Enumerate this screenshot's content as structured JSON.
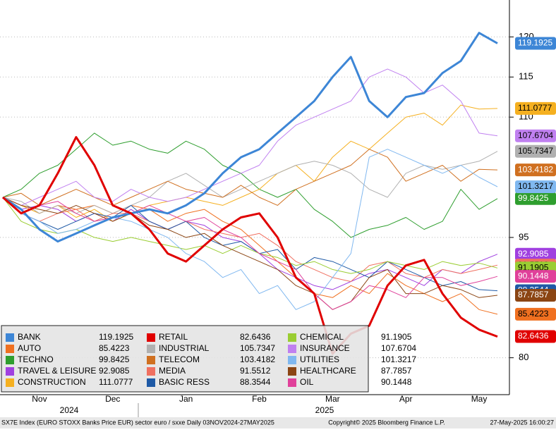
{
  "chart_data": {
    "type": "line",
    "footer_left": "SX7E Index (EURO STOXX Banks Price EUR) sector euro / sxxe  Daily 03NOV2024-27MAY2025",
    "footer_center": "Copyright© 2025 Bloomberg Finance L.P.",
    "footer_right": "27-May-2025 16:00:27",
    "years": [
      "2024",
      "2025"
    ],
    "categories": [
      null,
      null,
      "Nov",
      null,
      null,
      null,
      "Dec",
      null,
      null,
      null,
      "Jan",
      null,
      null,
      null,
      "Feb",
      null,
      null,
      null,
      "Mar",
      null,
      null,
      null,
      "Apr",
      null,
      null,
      null,
      "May",
      null
    ],
    "ylim": [
      75.4,
      124.6
    ],
    "yticks": [
      80,
      95,
      110,
      115,
      120
    ],
    "grid": true,
    "series": [
      {
        "name": "BANK",
        "color": "#3d86d6",
        "line_width": 3,
        "values": [
          100,
          98.5,
          96,
          94.5,
          95.5,
          96.5,
          97.5,
          98,
          98.5,
          98,
          99,
          100.5,
          103,
          105,
          106,
          108,
          110,
          112,
          115,
          117.5,
          112,
          110,
          112.5,
          113,
          115.5,
          117,
          120.5,
          119.1925
        ]
      },
      {
        "name": "AUTO",
        "color": "#f07020",
        "line_width": 1,
        "values": [
          100,
          99,
          98,
          99,
          98.5,
          99,
          98,
          99,
          98.5,
          97,
          98,
          98.5,
          97,
          96,
          94,
          92,
          90,
          88,
          87.5,
          89,
          88,
          90.5,
          89,
          88,
          87,
          88,
          86,
          85.4223
        ]
      },
      {
        "name": "TECHNO",
        "color": "#2e9e2e",
        "line_width": 1,
        "values": [
          100,
          101,
          103,
          104,
          106,
          108,
          106.5,
          107,
          106,
          105.5,
          107,
          106,
          104,
          103,
          101,
          100,
          101,
          98.5,
          97,
          95,
          96,
          96.5,
          97.5,
          96,
          97,
          101,
          98.5,
          99.8425
        ]
      },
      {
        "name": "TRAVEL & LEISURE",
        "color": "#a040e0",
        "line_width": 1,
        "values": [
          100,
          98.5,
          99,
          98.5,
          97,
          98,
          97,
          98.5,
          97,
          96,
          97,
          96.5,
          95,
          94.5,
          93,
          91,
          90,
          89,
          88.5,
          89.5,
          90.5,
          91,
          90,
          89,
          91,
          90.5,
          92,
          92.9085
        ]
      },
      {
        "name": "CONSTRUCTION",
        "color": "#f5b020",
        "line_width": 1,
        "values": [
          100,
          99,
          98,
          99,
          97.5,
          98.5,
          97,
          98,
          99,
          99.5,
          100,
          99.5,
          99,
          100,
          101,
          103,
          104,
          102,
          105,
          107,
          106,
          108,
          110,
          110.5,
          109,
          111.5,
          111,
          111.0777
        ]
      },
      {
        "name": "RETAIL",
        "color": "#e00000",
        "line_width": 3,
        "values": [
          100,
          98,
          99,
          103,
          107.5,
          104,
          99,
          98,
          96,
          93,
          92,
          94,
          96,
          97.5,
          98,
          95,
          90,
          88,
          80.5,
          83,
          84,
          89,
          91.5,
          92.2,
          88,
          85,
          83.5,
          82.6436
        ]
      },
      {
        "name": "INDUSTRIAL",
        "color": "#b0b0b0",
        "line_width": 1,
        "values": [
          100,
          99.5,
          98,
          99,
          98,
          99,
          98,
          99,
          100,
          102,
          103,
          101.5,
          100,
          101,
          102,
          103,
          104,
          104.5,
          104,
          103,
          101,
          100,
          103,
          104,
          103.5,
          104,
          104.5,
          105.7347
        ]
      },
      {
        "name": "TELECOM",
        "color": "#d07020",
        "line_width": 1,
        "values": [
          100,
          100.5,
          99,
          100,
          101,
          100,
          99,
          100,
          101,
          102,
          101,
          100.5,
          100,
          101.5,
          100,
          99,
          101,
          102,
          103,
          104,
          106,
          105,
          102,
          103,
          104,
          102,
          103.5,
          103.4182
        ]
      },
      {
        "name": "MEDIA",
        "color": "#f07060",
        "line_width": 1,
        "values": [
          100,
          98,
          97,
          98,
          98.5,
          97,
          98,
          98,
          97,
          96,
          97,
          96,
          95.5,
          95,
          95.5,
          94,
          92,
          91,
          90,
          89.5,
          91.5,
          92,
          90.5,
          90,
          91,
          90.5,
          91,
          91.5512
        ]
      },
      {
        "name": "BASIC RESS",
        "color": "#1f5aa6",
        "line_width": 1,
        "values": [
          100,
          98,
          97,
          96,
          97,
          98,
          97.5,
          99,
          97,
          96,
          97,
          95,
          94,
          94.5,
          93,
          93.5,
          91,
          92.5,
          92,
          91,
          90,
          92,
          91,
          90,
          89,
          89.5,
          88.5,
          88.3544
        ]
      },
      {
        "name": "CHEMICAL",
        "color": "#9acd32",
        "line_width": 1,
        "values": [
          100,
          97,
          96,
          95.5,
          96,
          95,
          94.5,
          95,
          94.5,
          94,
          93.5,
          94,
          93,
          94,
          93,
          92.5,
          91.5,
          92,
          91,
          90.5,
          91,
          92,
          91.5,
          91,
          92,
          91.5,
          91.8,
          91.1905
        ]
      },
      {
        "name": "INSURANCE",
        "color": "#c080f0",
        "line_width": 1,
        "values": [
          100,
          99,
          100,
          101,
          102,
          100,
          99.5,
          101,
          100,
          99.5,
          100,
          101,
          102,
          103,
          104,
          107,
          109,
          110,
          111,
          112,
          115,
          116,
          115,
          113,
          114,
          112,
          108,
          107.6704
        ]
      },
      {
        "name": "UTILITIES",
        "color": "#80b8f0",
        "line_width": 1,
        "values": [
          100,
          98,
          97,
          95.5,
          96,
          97,
          97.5,
          97,
          96,
          95,
          93,
          92,
          90,
          91,
          88,
          89,
          86,
          87,
          90,
          93,
          105,
          106,
          105,
          104,
          103,
          104,
          102.5,
          101.3217
        ]
      },
      {
        "name": "HEALTHCARE",
        "color": "#8b4513",
        "line_width": 1,
        "values": [
          100,
          99,
          98.5,
          98,
          99,
          98,
          97,
          98,
          96.5,
          96,
          95,
          95.5,
          94,
          93,
          92,
          91,
          89,
          88,
          86,
          87,
          90,
          91,
          88,
          88,
          89,
          88.5,
          87.5,
          87.7857
        ]
      },
      {
        "name": "OIL",
        "color": "#e0409a",
        "line_width": 1,
        "values": [
          100,
          98,
          99,
          99.5,
          98,
          97,
          97.5,
          98,
          99,
          98,
          97,
          97.5,
          96,
          95,
          93,
          92,
          91,
          88,
          86,
          87,
          89,
          88.5,
          87.5,
          90,
          90,
          89,
          89.5,
          90.1448
        ]
      }
    ]
  }
}
